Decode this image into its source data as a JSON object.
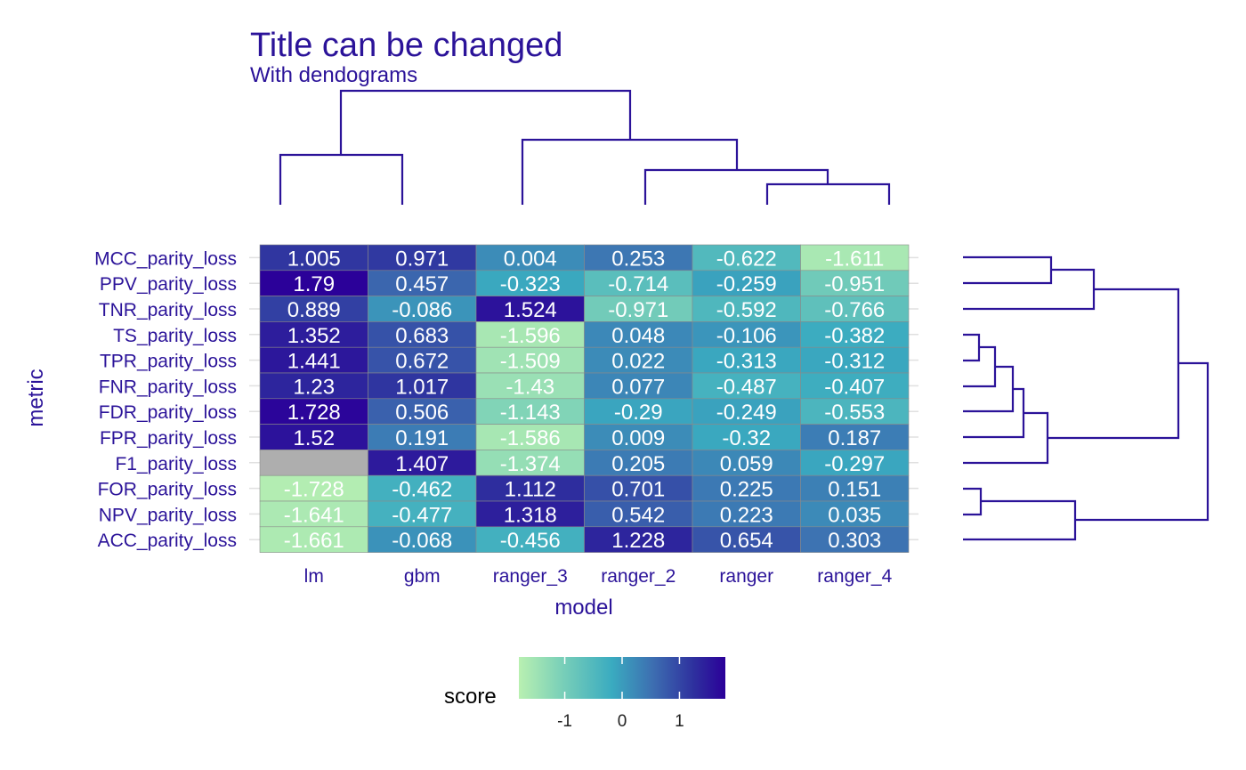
{
  "chart_data": {
    "type": "heatmap",
    "title": "Title can be changed",
    "subtitle": "With dendograms",
    "xlabel": "model",
    "ylabel": "metric",
    "x_categories": [
      "lm",
      "gbm",
      "ranger_3",
      "ranger_2",
      "ranger",
      "ranger_4"
    ],
    "y_categories": [
      "MCC_parity_loss",
      "PPV_parity_loss",
      "TNR_parity_loss",
      "TS_parity_loss",
      "TPR_parity_loss",
      "FNR_parity_loss",
      "FDR_parity_loss",
      "FPR_parity_loss",
      "F1_parity_loss",
      "FOR_parity_loss",
      "NPV_parity_loss",
      "ACC_parity_loss"
    ],
    "values": [
      [
        "1.005",
        "0.971",
        "0.004",
        "0.253",
        "-0.622",
        "-1.611"
      ],
      [
        "1.79",
        "0.457",
        "-0.323",
        "-0.714",
        "-0.259",
        "-0.951"
      ],
      [
        "0.889",
        "-0.086",
        "1.524",
        "-0.971",
        "-0.592",
        "-0.766"
      ],
      [
        "1.352",
        "0.683",
        "-1.596",
        "0.048",
        "-0.106",
        "-0.382"
      ],
      [
        "1.441",
        "0.672",
        "-1.509",
        "0.022",
        "-0.313",
        "-0.312"
      ],
      [
        "1.23",
        "1.017",
        "-1.43",
        "0.077",
        "-0.487",
        "-0.407"
      ],
      [
        "1.728",
        "0.506",
        "-1.143",
        "-0.29",
        "-0.249",
        "-0.553"
      ],
      [
        "1.52",
        "0.191",
        "-1.586",
        "0.009",
        "-0.32",
        "0.187"
      ],
      [
        null,
        "1.407",
        "-1.374",
        "0.205",
        "0.059",
        "-0.297"
      ],
      [
        "-1.728",
        "-0.462",
        "1.112",
        "0.701",
        "0.225",
        "0.151"
      ],
      [
        "-1.641",
        "-0.477",
        "1.318",
        "0.542",
        "0.223",
        "0.035"
      ],
      [
        "-1.661",
        "-0.068",
        "-0.456",
        "1.228",
        "0.654",
        "0.303"
      ]
    ],
    "color_range": [
      -1.8,
      1.8
    ],
    "colormap": [
      "#B9F0B1",
      "#7CD1B8",
      "#3AABC0",
      "#3D6EB1",
      "#2E2F9E",
      "#2B0099"
    ],
    "na_color": "#AEAEAE",
    "legend": {
      "title": "score",
      "ticks": [
        "-1",
        "0",
        "1"
      ],
      "tick_values": [
        -1,
        0,
        1
      ],
      "placement": "bottom"
    },
    "dendrogram_color": "#2B1399"
  }
}
